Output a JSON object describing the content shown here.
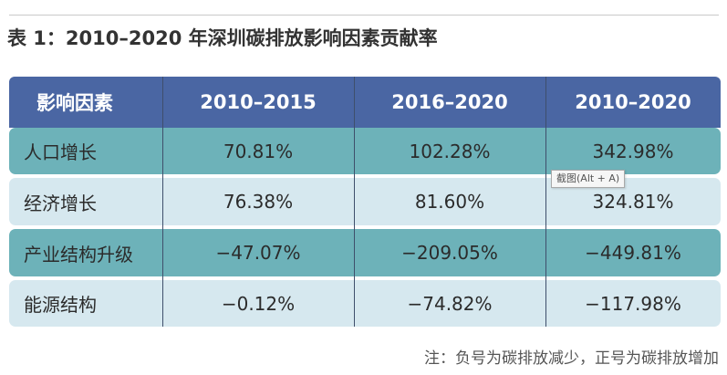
{
  "title": "表 1：2010–2020 年深圳碳排放影响因素贡献率",
  "table": {
    "headers": [
      "影响因素",
      "2010–2015",
      "2016–2020",
      "2010–2020"
    ],
    "rows": [
      [
        "人口增长",
        "70.81%",
        "102.28%",
        "342.98%"
      ],
      [
        "经济增长",
        "76.38%",
        "81.60%",
        "324.81%"
      ],
      [
        "产业结构升级",
        "−47.07%",
        "−209.05%",
        "−449.81%"
      ],
      [
        "能源结构",
        "−0.12%",
        "−74.82%",
        "−117.98%"
      ]
    ]
  },
  "tooltip": "截图(Alt + A)",
  "note": "注：负号为碳排放减少，正号为碳排放增加",
  "colors": {
    "header_bg": "#4a66a3",
    "row_dark": "#6db2b9",
    "row_light": "#d6e8ef"
  }
}
